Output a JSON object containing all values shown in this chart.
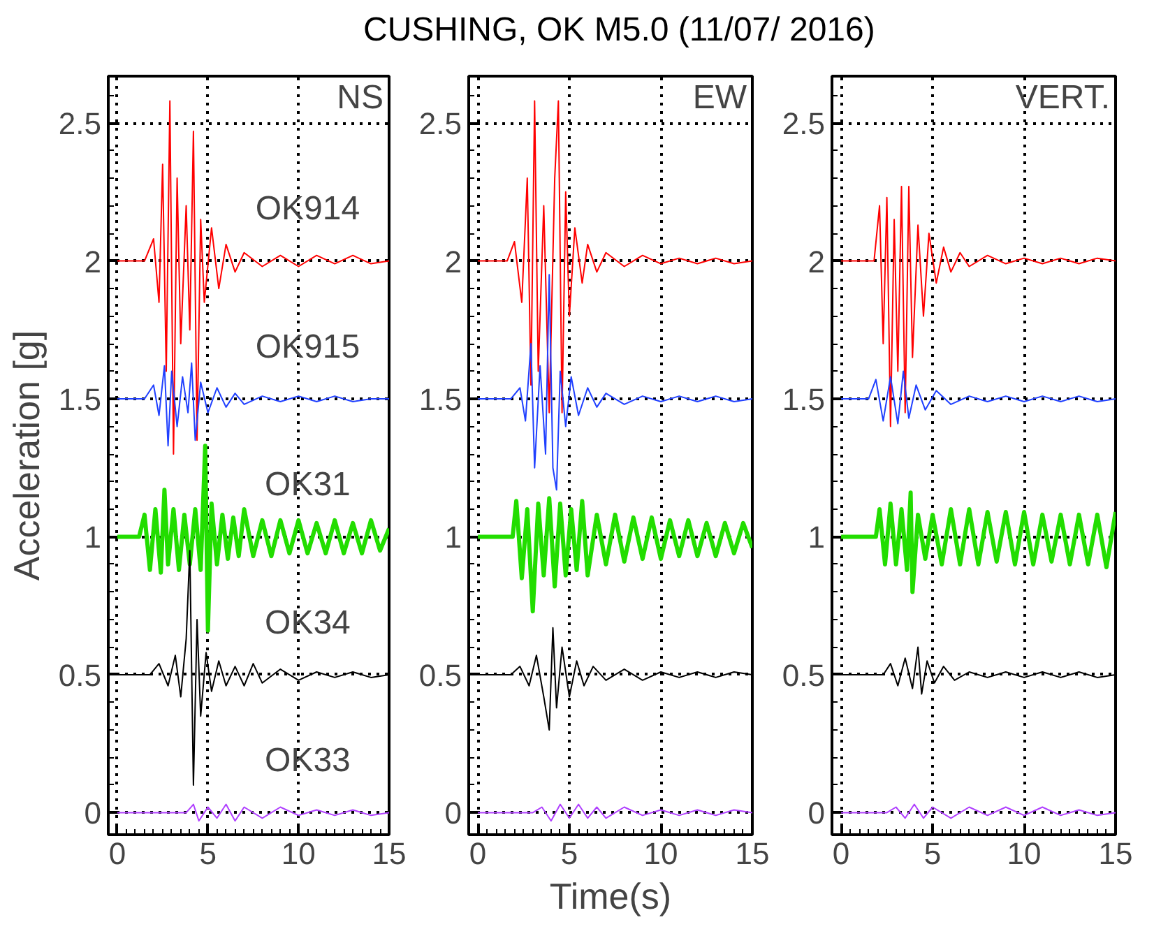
{
  "chart_data": [
    {
      "type": "line",
      "title": "NS",
      "ylabel": "Acceleration [g]",
      "xlim": [
        -0.5,
        15
      ],
      "ylim": [
        -0.08,
        2.67
      ],
      "xticks": [
        0,
        5,
        10,
        15
      ],
      "yticks": [
        0,
        0.5,
        1,
        1.5,
        2,
        2.5
      ],
      "grid": true,
      "series": [
        {
          "name": "OK914",
          "color": "#ff0000",
          "x": [
            0,
            1.5,
            2.0,
            2.3,
            2.5,
            2.7,
            2.9,
            3.1,
            3.3,
            3.5,
            3.8,
            4.0,
            4.2,
            4.4,
            4.6,
            4.8,
            5.2,
            5.6,
            6.0,
            6.5,
            7,
            8,
            9,
            10,
            11,
            12,
            13,
            14,
            15
          ],
          "values": [
            2,
            2,
            2.08,
            1.85,
            2.35,
            1.6,
            2.58,
            1.3,
            2.3,
            1.7,
            2.2,
            1.75,
            2.47,
            1.35,
            2.15,
            1.85,
            2.12,
            1.9,
            2.06,
            1.96,
            2.03,
            1.98,
            2.02,
            1.98,
            2.02,
            1.99,
            2.02,
            1.99,
            2.0
          ]
        },
        {
          "name": "OK915",
          "color": "#2040ff",
          "x": [
            0,
            1.5,
            2.0,
            2.3,
            2.6,
            2.8,
            3.0,
            3.3,
            3.6,
            3.9,
            4.1,
            4.3,
            4.6,
            5.0,
            5.5,
            6,
            6.5,
            7,
            8,
            9,
            10,
            11,
            12,
            13,
            14,
            15
          ],
          "values": [
            1.5,
            1.5,
            1.55,
            1.44,
            1.62,
            1.33,
            1.6,
            1.4,
            1.58,
            1.45,
            1.63,
            1.35,
            1.56,
            1.45,
            1.54,
            1.47,
            1.52,
            1.48,
            1.51,
            1.49,
            1.51,
            1.49,
            1.51,
            1.49,
            1.5,
            1.5
          ]
        },
        {
          "name": "OK31",
          "color": "#22dd00",
          "x": [
            0,
            1.2,
            1.5,
            1.8,
            2.1,
            2.4,
            2.6,
            2.8,
            3.1,
            3.4,
            3.7,
            4.0,
            4.3,
            4.6,
            4.85,
            5.0,
            5.2,
            5.5,
            5.8,
            6.1,
            6.4,
            6.7,
            7.0,
            7.5,
            8,
            8.5,
            9,
            9.5,
            10,
            10.5,
            11,
            11.5,
            12,
            12.5,
            13,
            13.5,
            14,
            14.5,
            15
          ],
          "values": [
            1,
            1,
            1.08,
            0.88,
            1.1,
            0.87,
            1.17,
            0.9,
            1.1,
            0.88,
            1.08,
            0.9,
            1.1,
            0.88,
            1.33,
            0.66,
            1.12,
            0.9,
            1.08,
            0.92,
            1.07,
            0.93,
            1.1,
            0.93,
            1.06,
            0.93,
            1.06,
            0.94,
            1.06,
            0.94,
            1.05,
            0.94,
            1.06,
            0.94,
            1.05,
            0.94,
            1.06,
            0.95,
            1.03
          ]
        },
        {
          "name": "OK34",
          "color": "#000000",
          "x": [
            0,
            1.8,
            2.3,
            2.8,
            3.2,
            3.5,
            3.8,
            4.0,
            4.2,
            4.4,
            4.6,
            4.9,
            5.2,
            5.6,
            6.0,
            6.5,
            7.0,
            7.5,
            8,
            9,
            10,
            11,
            12,
            13,
            14,
            15
          ],
          "values": [
            0.5,
            0.5,
            0.54,
            0.46,
            0.57,
            0.42,
            0.63,
            0.95,
            0.1,
            0.7,
            0.35,
            0.58,
            0.44,
            0.55,
            0.46,
            0.53,
            0.46,
            0.54,
            0.47,
            0.52,
            0.48,
            0.51,
            0.49,
            0.51,
            0.49,
            0.5
          ]
        },
        {
          "name": "OK33",
          "color": "#b040ff",
          "x": [
            0,
            3.8,
            4.2,
            4.5,
            5,
            5.5,
            6,
            6.5,
            7,
            8,
            9,
            10,
            11,
            12,
            13,
            14,
            15
          ],
          "values": [
            0,
            0,
            0.03,
            -0.03,
            0.02,
            -0.02,
            0.03,
            -0.03,
            0.02,
            -0.02,
            0.02,
            -0.01,
            0.01,
            -0.01,
            0.01,
            -0.01,
            0
          ]
        }
      ]
    },
    {
      "type": "line",
      "title": "EW",
      "xlabel": "Time(s)",
      "annotations": [
        "CUSHING, OK  M5.0 (11/07/ 2016)"
      ],
      "xlim": [
        -0.5,
        15
      ],
      "ylim": [
        -0.08,
        2.67
      ],
      "xticks": [
        0,
        5,
        10,
        15
      ],
      "yticks": [
        0,
        0.5,
        1,
        1.5,
        2,
        2.5
      ],
      "grid": true,
      "series": [
        {
          "color": "#ff0000",
          "x": [
            0,
            1.6,
            2.0,
            2.4,
            2.7,
            2.9,
            3.1,
            3.3,
            3.6,
            3.9,
            4.2,
            4.4,
            4.6,
            4.8,
            5.0,
            5.3,
            5.7,
            6.0,
            6.5,
            7,
            8,
            9,
            10,
            11,
            12,
            13,
            14,
            15
          ],
          "values": [
            2,
            2,
            2.07,
            1.85,
            2.3,
            1.55,
            2.58,
            1.6,
            2.2,
            1.45,
            2.3,
            2.58,
            1.45,
            2.25,
            1.8,
            2.12,
            1.92,
            2.06,
            1.96,
            2.03,
            1.98,
            2.02,
            1.99,
            2.01,
            1.99,
            2.01,
            1.99,
            2.0
          ]
        },
        {
          "color": "#2040ff",
          "x": [
            0,
            1.8,
            2.3,
            2.6,
            2.9,
            3.1,
            3.4,
            3.7,
            3.9,
            4.1,
            4.3,
            4.5,
            4.8,
            5.1,
            5.5,
            6,
            6.5,
            7,
            8,
            9,
            10,
            11,
            12,
            13,
            14,
            15
          ],
          "values": [
            1.5,
            1.5,
            1.54,
            1.42,
            1.7,
            1.25,
            1.62,
            1.3,
            1.95,
            1.25,
            1.17,
            1.6,
            1.4,
            1.58,
            1.44,
            1.54,
            1.47,
            1.52,
            1.48,
            1.51,
            1.49,
            1.51,
            1.49,
            1.51,
            1.49,
            1.5
          ]
        },
        {
          "color": "#22dd00",
          "x": [
            0,
            1.9,
            2.1,
            2.4,
            2.7,
            3.0,
            3.3,
            3.6,
            3.9,
            4.2,
            4.5,
            4.8,
            5.1,
            5.4,
            5.7,
            6.0,
            6.5,
            7,
            7.5,
            8,
            8.5,
            9,
            9.5,
            10,
            10.5,
            11,
            11.5,
            12,
            12.5,
            13,
            13.5,
            14,
            14.5,
            15
          ],
          "values": [
            1,
            1,
            1.13,
            0.85,
            1.1,
            0.73,
            1.12,
            0.86,
            1.14,
            0.82,
            1.12,
            0.86,
            1.1,
            0.88,
            1.13,
            0.86,
            1.08,
            0.9,
            1.08,
            0.91,
            1.07,
            0.92,
            1.07,
            0.92,
            1.06,
            0.93,
            1.06,
            0.93,
            1.05,
            0.93,
            1.05,
            0.94,
            1.05,
            0.96
          ]
        },
        {
          "color": "#000000",
          "x": [
            0,
            1.8,
            2.3,
            2.8,
            3.2,
            3.6,
            3.9,
            4.1,
            4.3,
            4.6,
            5.0,
            5.4,
            5.8,
            6.3,
            7,
            8,
            9,
            10,
            11,
            12,
            13,
            14,
            15
          ],
          "values": [
            0.5,
            0.5,
            0.53,
            0.46,
            0.57,
            0.42,
            0.3,
            0.67,
            0.38,
            0.6,
            0.42,
            0.55,
            0.46,
            0.53,
            0.48,
            0.52,
            0.48,
            0.51,
            0.49,
            0.51,
            0.49,
            0.51,
            0.5
          ]
        },
        {
          "color": "#b040ff",
          "x": [
            0,
            3.0,
            3.5,
            4,
            4.5,
            5,
            5.5,
            6,
            6.5,
            7,
            8,
            9,
            10,
            11,
            12,
            13,
            14,
            15
          ],
          "values": [
            0,
            0,
            0.02,
            -0.03,
            0.03,
            -0.02,
            0.03,
            -0.02,
            0.02,
            -0.02,
            0.02,
            -0.01,
            0.01,
            -0.01,
            0.01,
            -0.01,
            0.01,
            0
          ]
        }
      ]
    },
    {
      "type": "line",
      "title": "VERT.",
      "xlim": [
        -0.5,
        15
      ],
      "ylim": [
        -0.08,
        2.67
      ],
      "xticks": [
        0,
        5,
        10,
        15
      ],
      "yticks": [
        0,
        0.5,
        1,
        1.5,
        2,
        2.5
      ],
      "grid": true,
      "series": [
        {
          "color": "#ff0000",
          "x": [
            0,
            1.8,
            2.1,
            2.3,
            2.5,
            2.7,
            2.9,
            3.1,
            3.3,
            3.5,
            3.7,
            3.9,
            4.2,
            4.5,
            4.8,
            5.2,
            5.6,
            6,
            6.5,
            7,
            8,
            9,
            10,
            11,
            12,
            13,
            14,
            15
          ],
          "values": [
            2,
            2,
            2.2,
            1.7,
            2.23,
            1.4,
            2.15,
            1.6,
            2.27,
            1.45,
            2.27,
            1.65,
            2.13,
            1.8,
            2.1,
            1.92,
            2.05,
            1.96,
            2.03,
            1.98,
            2.02,
            1.99,
            2.01,
            1.99,
            2.01,
            1.99,
            2.01,
            2.0
          ]
        },
        {
          "color": "#2040ff",
          "x": [
            0,
            1.5,
            1.9,
            2.3,
            2.7,
            3.1,
            3.4,
            3.7,
            4.1,
            4.6,
            5.2,
            6,
            7,
            8,
            9,
            10,
            11,
            12,
            13,
            14,
            15
          ],
          "values": [
            1.5,
            1.5,
            1.57,
            1.42,
            1.58,
            1.41,
            1.6,
            1.43,
            1.55,
            1.46,
            1.53,
            1.48,
            1.51,
            1.49,
            1.51,
            1.49,
            1.51,
            1.49,
            1.51,
            1.49,
            1.5
          ]
        },
        {
          "color": "#22dd00",
          "x": [
            0,
            1.9,
            2.1,
            2.4,
            2.7,
            3.0,
            3.3,
            3.6,
            3.8,
            3.9,
            4.2,
            4.6,
            5,
            5.5,
            6,
            6.5,
            7,
            7.5,
            8,
            8.5,
            9,
            9.5,
            10,
            10.5,
            11,
            11.5,
            12,
            12.5,
            13,
            13.5,
            14,
            14.5,
            15
          ],
          "values": [
            1,
            1,
            1.1,
            0.9,
            1.12,
            0.9,
            1.1,
            0.88,
            1.16,
            0.8,
            1.08,
            0.92,
            1.08,
            0.9,
            1.1,
            0.9,
            1.1,
            0.9,
            1.09,
            0.91,
            1.09,
            0.9,
            1.09,
            0.9,
            1.08,
            0.91,
            1.08,
            0.9,
            1.08,
            0.9,
            1.08,
            0.89,
            1.09
          ]
        },
        {
          "color": "#000000",
          "x": [
            0,
            2.3,
            2.7,
            3.1,
            3.5,
            3.9,
            4.2,
            4.4,
            4.7,
            5.1,
            5.6,
            6.2,
            7,
            8,
            9,
            10,
            11,
            12,
            13,
            14,
            15
          ],
          "values": [
            0.5,
            0.5,
            0.54,
            0.46,
            0.56,
            0.45,
            0.6,
            0.43,
            0.55,
            0.47,
            0.53,
            0.48,
            0.51,
            0.49,
            0.51,
            0.49,
            0.51,
            0.49,
            0.51,
            0.49,
            0.5
          ]
        },
        {
          "color": "#b040ff",
          "x": [
            0,
            2.5,
            3,
            3.5,
            4,
            4.5,
            5,
            6,
            7,
            8,
            9,
            10,
            11,
            12,
            13,
            14,
            15
          ],
          "values": [
            0,
            0,
            0.02,
            -0.02,
            0.03,
            -0.02,
            0.02,
            -0.02,
            0.02,
            -0.01,
            0.02,
            -0.01,
            0.02,
            -0.01,
            0.01,
            -0.01,
            0
          ]
        }
      ]
    }
  ]
}
